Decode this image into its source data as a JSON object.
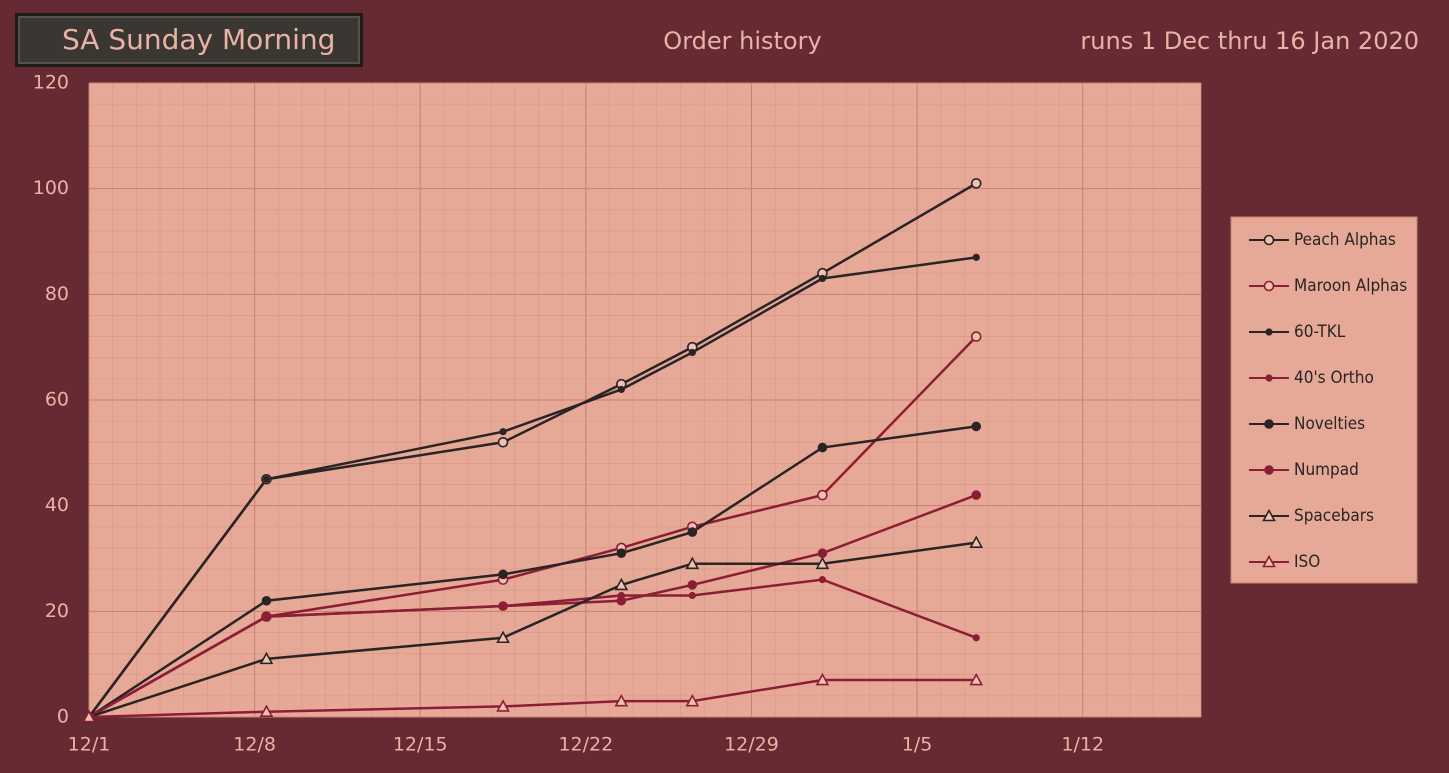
{
  "header": {
    "badge": "SA Sunday Morning",
    "subtitle": "runs 1 Dec thru 16 Jan 2020"
  },
  "chart_data": {
    "type": "line",
    "title": "Order history",
    "x": [
      0,
      7.5,
      17.5,
      22.5,
      25.5,
      31,
      37.5
    ],
    "xlim": [
      0,
      47
    ],
    "xticks": [
      {
        "value": 0,
        "label": "12/1"
      },
      {
        "value": 7,
        "label": "12/8"
      },
      {
        "value": 14,
        "label": "12/15"
      },
      {
        "value": 21,
        "label": "12/22"
      },
      {
        "value": 28,
        "label": "12/29"
      },
      {
        "value": 35,
        "label": "1/5"
      },
      {
        "value": 42,
        "label": "1/12"
      }
    ],
    "ylim": [
      0,
      120
    ],
    "yticks": [
      0,
      20,
      40,
      60,
      80,
      100,
      120
    ],
    "grid": true,
    "legend": "right",
    "series": [
      {
        "name": "Peach Alphas",
        "color": "#2a2424",
        "marker": "open-circle",
        "values": [
          0,
          45,
          52,
          63,
          70,
          84,
          101
        ]
      },
      {
        "name": "Maroon Alphas",
        "color": "#8b1e35",
        "marker": "open-circle",
        "values": [
          0,
          19,
          26,
          32,
          36,
          42,
          72
        ]
      },
      {
        "name": "60-TKL",
        "color": "#2a2424",
        "marker": "dot",
        "values": [
          0,
          45,
          54,
          62,
          69,
          83,
          87
        ]
      },
      {
        "name": "40's Ortho",
        "color": "#8b1e35",
        "marker": "dot",
        "values": [
          0,
          19,
          21,
          23,
          23,
          26,
          15
        ]
      },
      {
        "name": "Novelties",
        "color": "#2a2424",
        "marker": "circle",
        "values": [
          0,
          22,
          27,
          31,
          35,
          51,
          55
        ]
      },
      {
        "name": "Numpad",
        "color": "#8b1e35",
        "marker": "circle",
        "values": [
          0,
          19,
          21,
          22,
          25,
          31,
          42
        ]
      },
      {
        "name": "Spacebars",
        "color": "#2a2424",
        "marker": "open-triangle",
        "values": [
          0,
          11,
          15,
          25,
          29,
          29,
          33
        ]
      },
      {
        "name": "ISO",
        "color": "#8b1e35",
        "marker": "open-triangle",
        "values": [
          0,
          1,
          2,
          3,
          3,
          7,
          7
        ]
      }
    ]
  }
}
